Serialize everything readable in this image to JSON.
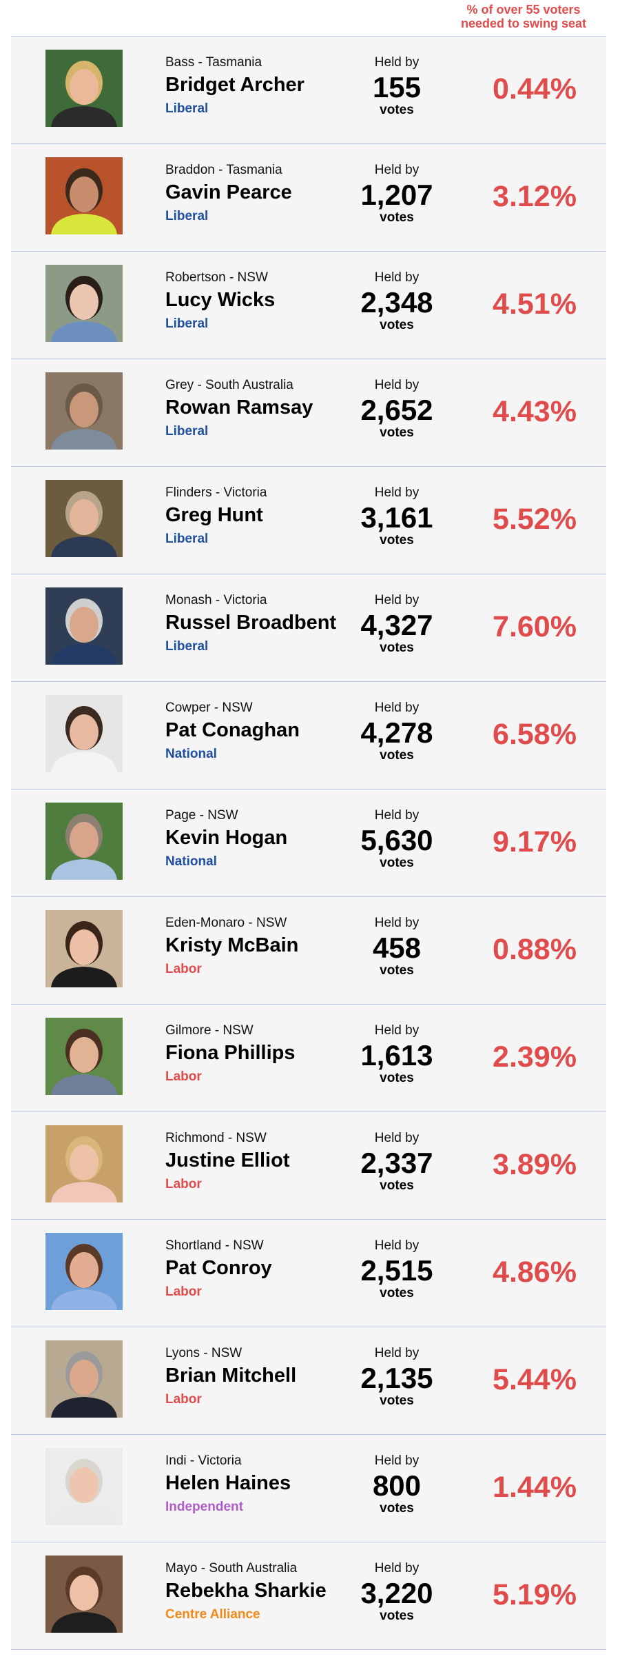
{
  "header": {
    "label_line1": "% of over 55 voters",
    "label_line2": "needed to swing seat"
  },
  "party_colors": {
    "Liberal": "#1f4fa0",
    "National": "#1f4fa0",
    "Labor": "#e04b4b",
    "Independent": "#b05cc8",
    "Centre Alliance": "#f08a1c"
  },
  "accent_color": "#e04b4b",
  "rows": [
    {
      "seat": "Bass - Tasmania",
      "name": "Bridget Archer",
      "party": "Liberal",
      "held_by": "Held by",
      "votes": "155",
      "unit": "votes",
      "pct": "0.44%",
      "photo": {
        "bg": "#3f6b3a",
        "skin": "#e9b99a",
        "hair": "#d6b46a",
        "shirt": "#2b2b2b"
      }
    },
    {
      "seat": "Braddon - Tasmania",
      "name": "Gavin Pearce",
      "party": "Liberal",
      "held_by": "Held by",
      "votes": "1,207",
      "unit": "votes",
      "pct": "3.12%",
      "photo": {
        "bg": "#b9532c",
        "skin": "#c98c6c",
        "hair": "#3a2a1e",
        "shirt": "#d9e63b"
      }
    },
    {
      "seat": "Robertson - NSW",
      "name": "Lucy Wicks",
      "party": "Liberal",
      "held_by": "Held by",
      "votes": "2,348",
      "unit": "votes",
      "pct": "4.51%",
      "photo": {
        "bg": "#8c9a86",
        "skin": "#ebc7b2",
        "hair": "#2a1e18",
        "shirt": "#6d8fc0"
      }
    },
    {
      "seat": "Grey - South Australia",
      "name": "Rowan Ramsay",
      "party": "Liberal",
      "held_by": "Held by",
      "votes": "2,652",
      "unit": "votes",
      "pct": "4.43%",
      "photo": {
        "bg": "#8a7864",
        "skin": "#c9977a",
        "hair": "#6b5a48",
        "shirt": "#7e8b9a"
      }
    },
    {
      "seat": "Flinders - Victoria",
      "name": "Greg Hunt",
      "party": "Liberal",
      "held_by": "Held by",
      "votes": "3,161",
      "unit": "votes",
      "pct": "5.52%",
      "photo": {
        "bg": "#6a5c3c",
        "skin": "#e3b59a",
        "hair": "#b8a48a",
        "shirt": "#2d3a55"
      }
    },
    {
      "seat": "Monash - Victoria",
      "name": "Russel Broadbent",
      "party": "Liberal",
      "held_by": "Held by",
      "votes": "4,327",
      "unit": "votes",
      "pct": "7.60%",
      "photo": {
        "bg": "#2f3e55",
        "skin": "#d9a88c",
        "hair": "#cfcfcf",
        "shirt": "#243a66"
      }
    },
    {
      "seat": "Cowper - NSW",
      "name": "Pat Conaghan",
      "party": "National",
      "held_by": "Held by",
      "votes": "4,278",
      "unit": "votes",
      "pct": "6.58%",
      "photo": {
        "bg": "#e6e6e6",
        "skin": "#e7b9a0",
        "hair": "#3a2a20",
        "shirt": "#f4f4f4"
      }
    },
    {
      "seat": "Page - NSW",
      "name": "Kevin Hogan",
      "party": "National",
      "held_by": "Held by",
      "votes": "5,630",
      "unit": "votes",
      "pct": "9.17%",
      "photo": {
        "bg": "#4e7d3e",
        "skin": "#d8a58a",
        "hair": "#8e8070",
        "shirt": "#a9c3e0"
      }
    },
    {
      "seat": "Eden-Monaro - NSW",
      "name": "Kristy McBain",
      "party": "Labor",
      "held_by": "Held by",
      "votes": "458",
      "unit": "votes",
      "pct": "0.88%",
      "photo": {
        "bg": "#c9b49a",
        "skin": "#ecc0a6",
        "hair": "#3b2418",
        "shirt": "#1c1c1c"
      }
    },
    {
      "seat": "Gilmore - NSW",
      "name": "Fiona Phillips",
      "party": "Labor",
      "held_by": "Held by",
      "votes": "1,613",
      "unit": "votes",
      "pct": "2.39%",
      "photo": {
        "bg": "#5f8a48",
        "skin": "#e2b295",
        "hair": "#4a2f22",
        "shirt": "#6f7f99"
      }
    },
    {
      "seat": "Richmond - NSW",
      "name": "Justine Elliot",
      "party": "Labor",
      "held_by": "Held by",
      "votes": "2,337",
      "unit": "votes",
      "pct": "3.89%",
      "photo": {
        "bg": "#c7a06a",
        "skin": "#edc2a6",
        "hair": "#d9b67a",
        "shirt": "#f1c7b9"
      }
    },
    {
      "seat": "Shortland - NSW",
      "name": "Pat Conroy",
      "party": "Labor",
      "held_by": "Held by",
      "votes": "2,515",
      "unit": "votes",
      "pct": "4.86%",
      "photo": {
        "bg": "#6f9fd8",
        "skin": "#e2ad92",
        "hair": "#5a3a26",
        "shirt": "#8fb3e6"
      }
    },
    {
      "seat": "Lyons - NSW",
      "name": "Brian Mitchell",
      "party": "Labor",
      "held_by": "Held by",
      "votes": "2,135",
      "unit": "votes",
      "pct": "5.44%",
      "photo": {
        "bg": "#b8aa92",
        "skin": "#dca88c",
        "hair": "#9a9a9a",
        "shirt": "#1f2430"
      }
    },
    {
      "seat": "Indi - Victoria",
      "name": "Helen Haines",
      "party": "Independent",
      "held_by": "Held by",
      "votes": "800",
      "unit": "votes",
      "pct": "1.44%",
      "photo": {
        "bg": "#ececec",
        "skin": "#eec6b0",
        "hair": "#d9d6cf",
        "shirt": "#eaeaea"
      }
    },
    {
      "seat": "Mayo - South Australia",
      "name": "Rebekha Sharkie",
      "party": "Centre Alliance",
      "held_by": "Held by",
      "votes": "3,220",
      "unit": "votes",
      "pct": "5.19%",
      "photo": {
        "bg": "#7a5a44",
        "skin": "#eec0a6",
        "hair": "#5a3a28",
        "shirt": "#1e1e1e"
      }
    }
  ]
}
